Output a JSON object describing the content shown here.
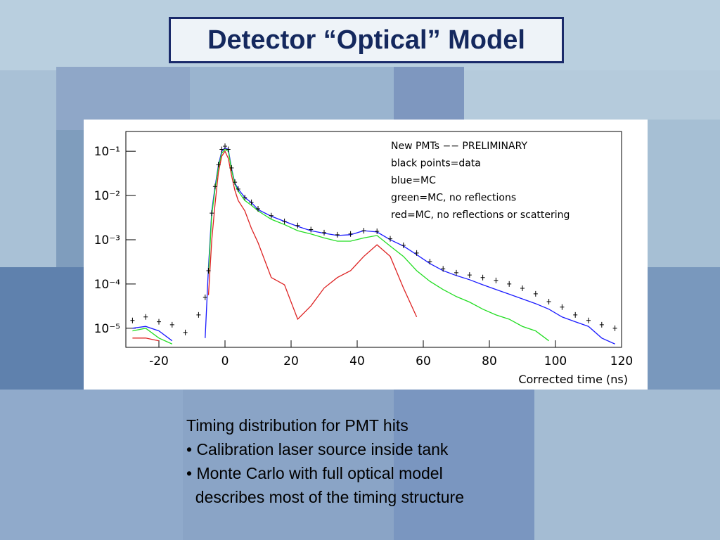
{
  "title": "Detector “Optical” Model",
  "bullets": [
    "Timing distribution for PMT hits",
    "• Calibration laser source inside tank",
    "• Monte Carlo with full optical model",
    "  describes most of the timing structure"
  ],
  "chart_data": {
    "type": "line",
    "log_y": true,
    "annotations": [
      "New PMTs −− PRELIMINARY",
      "black points=data",
      "blue=MC",
      "green=MC, no reflections",
      "red=MC, no reflections or scattering"
    ],
    "x_label": "Corrected time (ns)",
    "xlim": [
      -30,
      120
    ],
    "xticks": [
      -20,
      0,
      20,
      40,
      60,
      80,
      100,
      120
    ],
    "ylim": [
      3.7e-06,
      0.28
    ],
    "yticks": [
      {
        "value": 1e-05,
        "label": "10⁻⁵"
      },
      {
        "value": 0.0001,
        "label": "10⁻⁴"
      },
      {
        "value": 0.001,
        "label": "10⁻³"
      },
      {
        "value": 0.01,
        "label": "10⁻²"
      },
      {
        "value": 0.1,
        "label": "10⁻¹"
      }
    ],
    "x": [
      -28,
      -24,
      -20,
      -16,
      -12,
      -8,
      -6,
      -5,
      -4,
      -3,
      -2,
      -1,
      0,
      1,
      2,
      3,
      4,
      6,
      8,
      10,
      14,
      18,
      22,
      26,
      30,
      34,
      38,
      42,
      46,
      50,
      54,
      58,
      62,
      66,
      70,
      74,
      78,
      82,
      86,
      90,
      94,
      98,
      102,
      106,
      110,
      114,
      118
    ],
    "series": [
      {
        "color": "#1a1aff",
        "style": "line",
        "values": [
          1e-05,
          1.1e-05,
          8.7e-06,
          5.2e-06,
          null,
          null,
          6e-06,
          0.00024,
          0.0045,
          0.016,
          0.048,
          0.1,
          0.12,
          0.11,
          0.04,
          0.019,
          0.014,
          0.009,
          0.0069,
          0.0048,
          0.0034,
          0.0026,
          0.002,
          0.0016,
          0.0014,
          0.00125,
          0.0013,
          0.0016,
          0.0015,
          0.001,
          0.00072,
          0.00046,
          0.00029,
          0.0002,
          0.000155,
          0.000125,
          9.6e-05,
          7.5e-05,
          5.9e-05,
          4.6e-05,
          3.6e-05,
          2.7e-05,
          1.8e-05,
          1.4e-05,
          1.1e-05,
          6e-06,
          4.4e-06
        ]
      },
      {
        "color": "#22dd22",
        "style": "line",
        "values": [
          8.7e-06,
          1e-05,
          6e-06,
          4.4e-06,
          null,
          null,
          null,
          0.00017,
          0.0037,
          0.014,
          0.043,
          0.09,
          0.11,
          0.1,
          0.037,
          0.018,
          0.0125,
          0.0077,
          0.006,
          0.0045,
          0.0029,
          0.0022,
          0.0016,
          0.00135,
          0.0011,
          0.00093,
          0.00093,
          0.0011,
          0.00125,
          0.00072,
          0.00042,
          0.0002,
          0.000115,
          7.5e-05,
          5.2e-05,
          3.9e-05,
          2.7e-05,
          2e-05,
          1.6e-05,
          1.1e-05,
          8.7e-06,
          5.2e-06,
          null,
          null,
          null,
          null,
          null
        ]
      },
      {
        "color": "#dd2222",
        "style": "line",
        "values": [
          6e-06,
          6e-06,
          5.2e-06,
          null,
          null,
          null,
          null,
          5.6e-05,
          0.001,
          0.0065,
          0.033,
          0.077,
          0.1,
          0.069,
          0.028,
          0.013,
          0.0077,
          0.0045,
          0.0018,
          0.00086,
          0.00014,
          9.6e-05,
          1.6e-05,
          3.2e-05,
          8.1e-05,
          0.00014,
          0.0002,
          0.00042,
          0.00077,
          0.00042,
          8.1e-05,
          1.8e-05,
          null,
          null,
          null,
          null,
          null,
          null,
          null,
          null,
          null,
          null,
          null,
          null,
          null,
          null,
          null
        ]
      },
      {
        "color": "#000000",
        "style": "points",
        "values": [
          1.5e-05,
          1.8e-05,
          1.4e-05,
          1.2e-05,
          8e-06,
          2e-05,
          5e-05,
          0.0002,
          0.004,
          0.016,
          0.05,
          0.11,
          0.13,
          0.11,
          0.042,
          0.02,
          0.014,
          0.009,
          0.007,
          0.005,
          0.0035,
          0.0026,
          0.0021,
          0.0017,
          0.00145,
          0.0013,
          0.00135,
          0.0016,
          0.00155,
          0.00105,
          0.00075,
          0.0005,
          0.00032,
          0.00022,
          0.00018,
          0.00016,
          0.00014,
          0.00012,
          0.0001,
          8e-05,
          6e-05,
          4e-05,
          3e-05,
          2e-05,
          1.5e-05,
          1.2e-05,
          1e-05
        ]
      }
    ]
  }
}
